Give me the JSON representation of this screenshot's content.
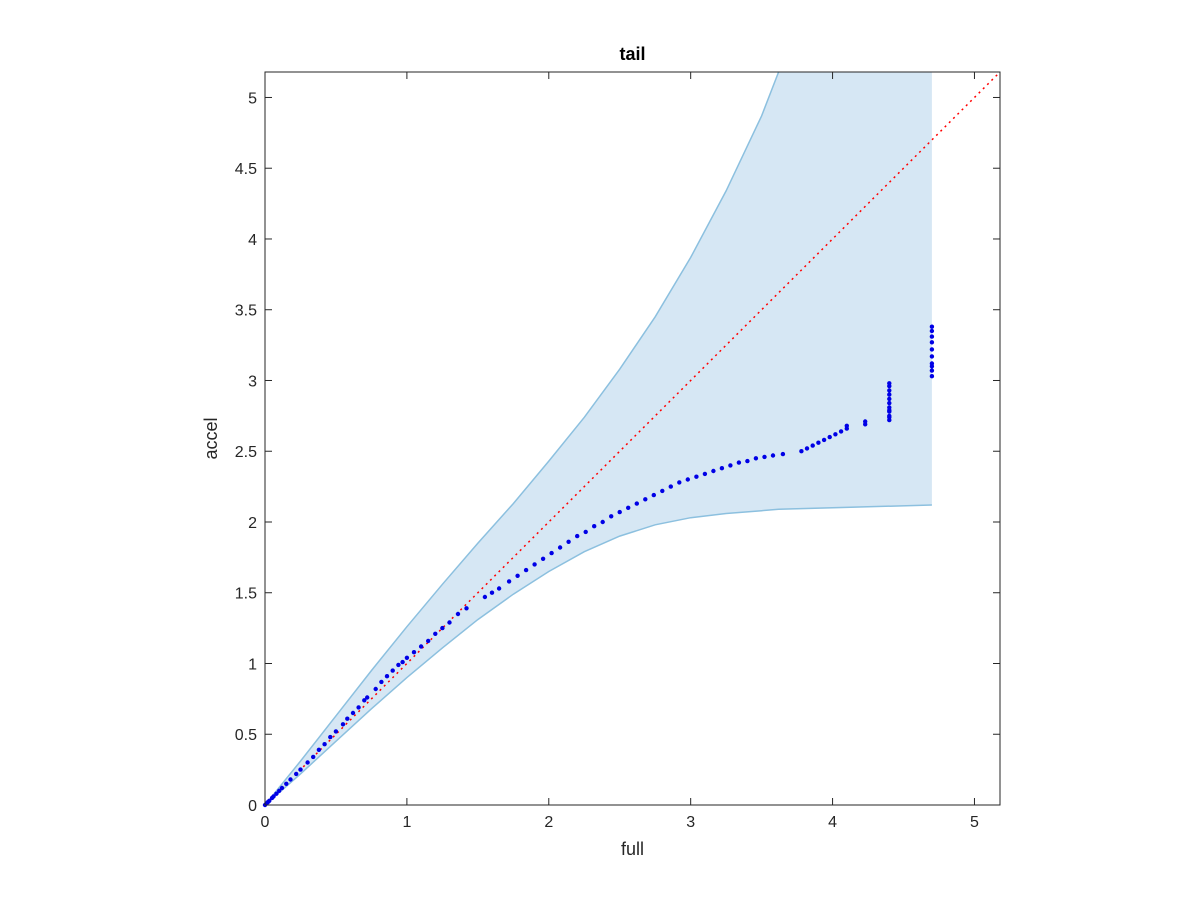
{
  "chart_data": {
    "type": "scatter",
    "title": "tail",
    "xlabel": "full",
    "ylabel": "accel",
    "xlim": [
      0,
      5.18
    ],
    "ylim": [
      0,
      5.18
    ],
    "xticks": [
      0,
      1,
      2,
      3,
      4,
      5
    ],
    "xtick_labels": [
      "0",
      "1",
      "2",
      "3",
      "4",
      "5"
    ],
    "yticks": [
      0,
      0.5,
      1,
      1.5,
      2,
      2.5,
      3,
      3.5,
      4,
      4.5,
      5
    ],
    "ytick_labels": [
      "0",
      "0.5",
      "1",
      "1.5",
      "2",
      "2.5",
      "3",
      "3.5",
      "4",
      "4.5",
      "5"
    ],
    "grid": false,
    "reference_line": {
      "from": [
        0,
        0
      ],
      "to": [
        5.18,
        5.18
      ],
      "style": "dotted",
      "color": "#ff0000"
    },
    "band": {
      "x": [
        0,
        0.25,
        0.5,
        0.75,
        1.0,
        1.25,
        1.5,
        1.75,
        2.0,
        2.25,
        2.5,
        2.75,
        3.0,
        3.25,
        3.5,
        3.62,
        4.7
      ],
      "upper": [
        0,
        0.31,
        0.63,
        0.95,
        1.26,
        1.56,
        1.85,
        2.13,
        2.43,
        2.74,
        3.08,
        3.45,
        3.87,
        4.34,
        4.87,
        5.18,
        5.18
      ],
      "lower": [
        0,
        0.22,
        0.45,
        0.68,
        0.9,
        1.11,
        1.31,
        1.49,
        1.65,
        1.79,
        1.9,
        1.98,
        2.03,
        2.06,
        2.08,
        2.09,
        2.12
      ],
      "fill_color": "#d6e7f4",
      "edge_color": "#8cc0df"
    },
    "series": [
      {
        "color": "#0000e6",
        "x": [
          0,
          0.01,
          0.02,
          0.03,
          0.05,
          0.06,
          0.08,
          0.1,
          0.12,
          0.15,
          0.18,
          0.22,
          0.25,
          0.3,
          0.34,
          0.38,
          0.42,
          0.46,
          0.5,
          0.55,
          0.58,
          0.62,
          0.66,
          0.7,
          0.72,
          0.78,
          0.82,
          0.86,
          0.9,
          0.94,
          0.97,
          1.0,
          1.05,
          1.1,
          1.15,
          1.2,
          1.25,
          1.3,
          1.36,
          1.42,
          1.55,
          1.6,
          1.65,
          1.72,
          1.78,
          1.84,
          1.9,
          1.96,
          2.02,
          2.08,
          2.14,
          2.2,
          2.26,
          2.32,
          2.38,
          2.44,
          2.5,
          2.56,
          2.62,
          2.68,
          2.74,
          2.8,
          2.86,
          2.92,
          2.98,
          3.04,
          3.1,
          3.16,
          3.22,
          3.28,
          3.34,
          3.4,
          3.46,
          3.52,
          3.58,
          3.65,
          3.78,
          3.82,
          3.86,
          3.9,
          3.94,
          3.98,
          4.02,
          4.06,
          4.1,
          4.1,
          4.23,
          4.23,
          4.4,
          4.4,
          4.4,
          4.4,
          4.4,
          4.4,
          4.4,
          4.4,
          4.4,
          4.4,
          4.4,
          4.4,
          4.7,
          4.7,
          4.7,
          4.7,
          4.7,
          4.7,
          4.7,
          4.7,
          4.7,
          4.7
        ],
        "y": [
          0,
          0.01,
          0.02,
          0.03,
          0.05,
          0.06,
          0.08,
          0.1,
          0.12,
          0.15,
          0.18,
          0.22,
          0.25,
          0.3,
          0.34,
          0.39,
          0.43,
          0.48,
          0.52,
          0.57,
          0.61,
          0.65,
          0.69,
          0.74,
          0.76,
          0.82,
          0.87,
          0.91,
          0.95,
          0.99,
          1.01,
          1.04,
          1.08,
          1.12,
          1.16,
          1.21,
          1.25,
          1.29,
          1.35,
          1.39,
          1.47,
          1.5,
          1.53,
          1.58,
          1.62,
          1.66,
          1.7,
          1.74,
          1.78,
          1.82,
          1.86,
          1.9,
          1.93,
          1.97,
          2.0,
          2.04,
          2.07,
          2.1,
          2.13,
          2.16,
          2.19,
          2.22,
          2.25,
          2.28,
          2.3,
          2.32,
          2.34,
          2.36,
          2.38,
          2.4,
          2.42,
          2.43,
          2.45,
          2.46,
          2.47,
          2.48,
          2.5,
          2.52,
          2.54,
          2.56,
          2.58,
          2.6,
          2.62,
          2.64,
          2.66,
          2.68,
          2.69,
          2.71,
          2.72,
          2.75,
          2.78,
          2.81,
          2.84,
          2.87,
          2.9,
          2.93,
          2.96,
          2.98,
          2.74,
          2.79,
          3.03,
          3.07,
          3.12,
          3.17,
          3.22,
          3.27,
          3.31,
          3.35,
          3.38,
          3.1
        ]
      }
    ]
  }
}
